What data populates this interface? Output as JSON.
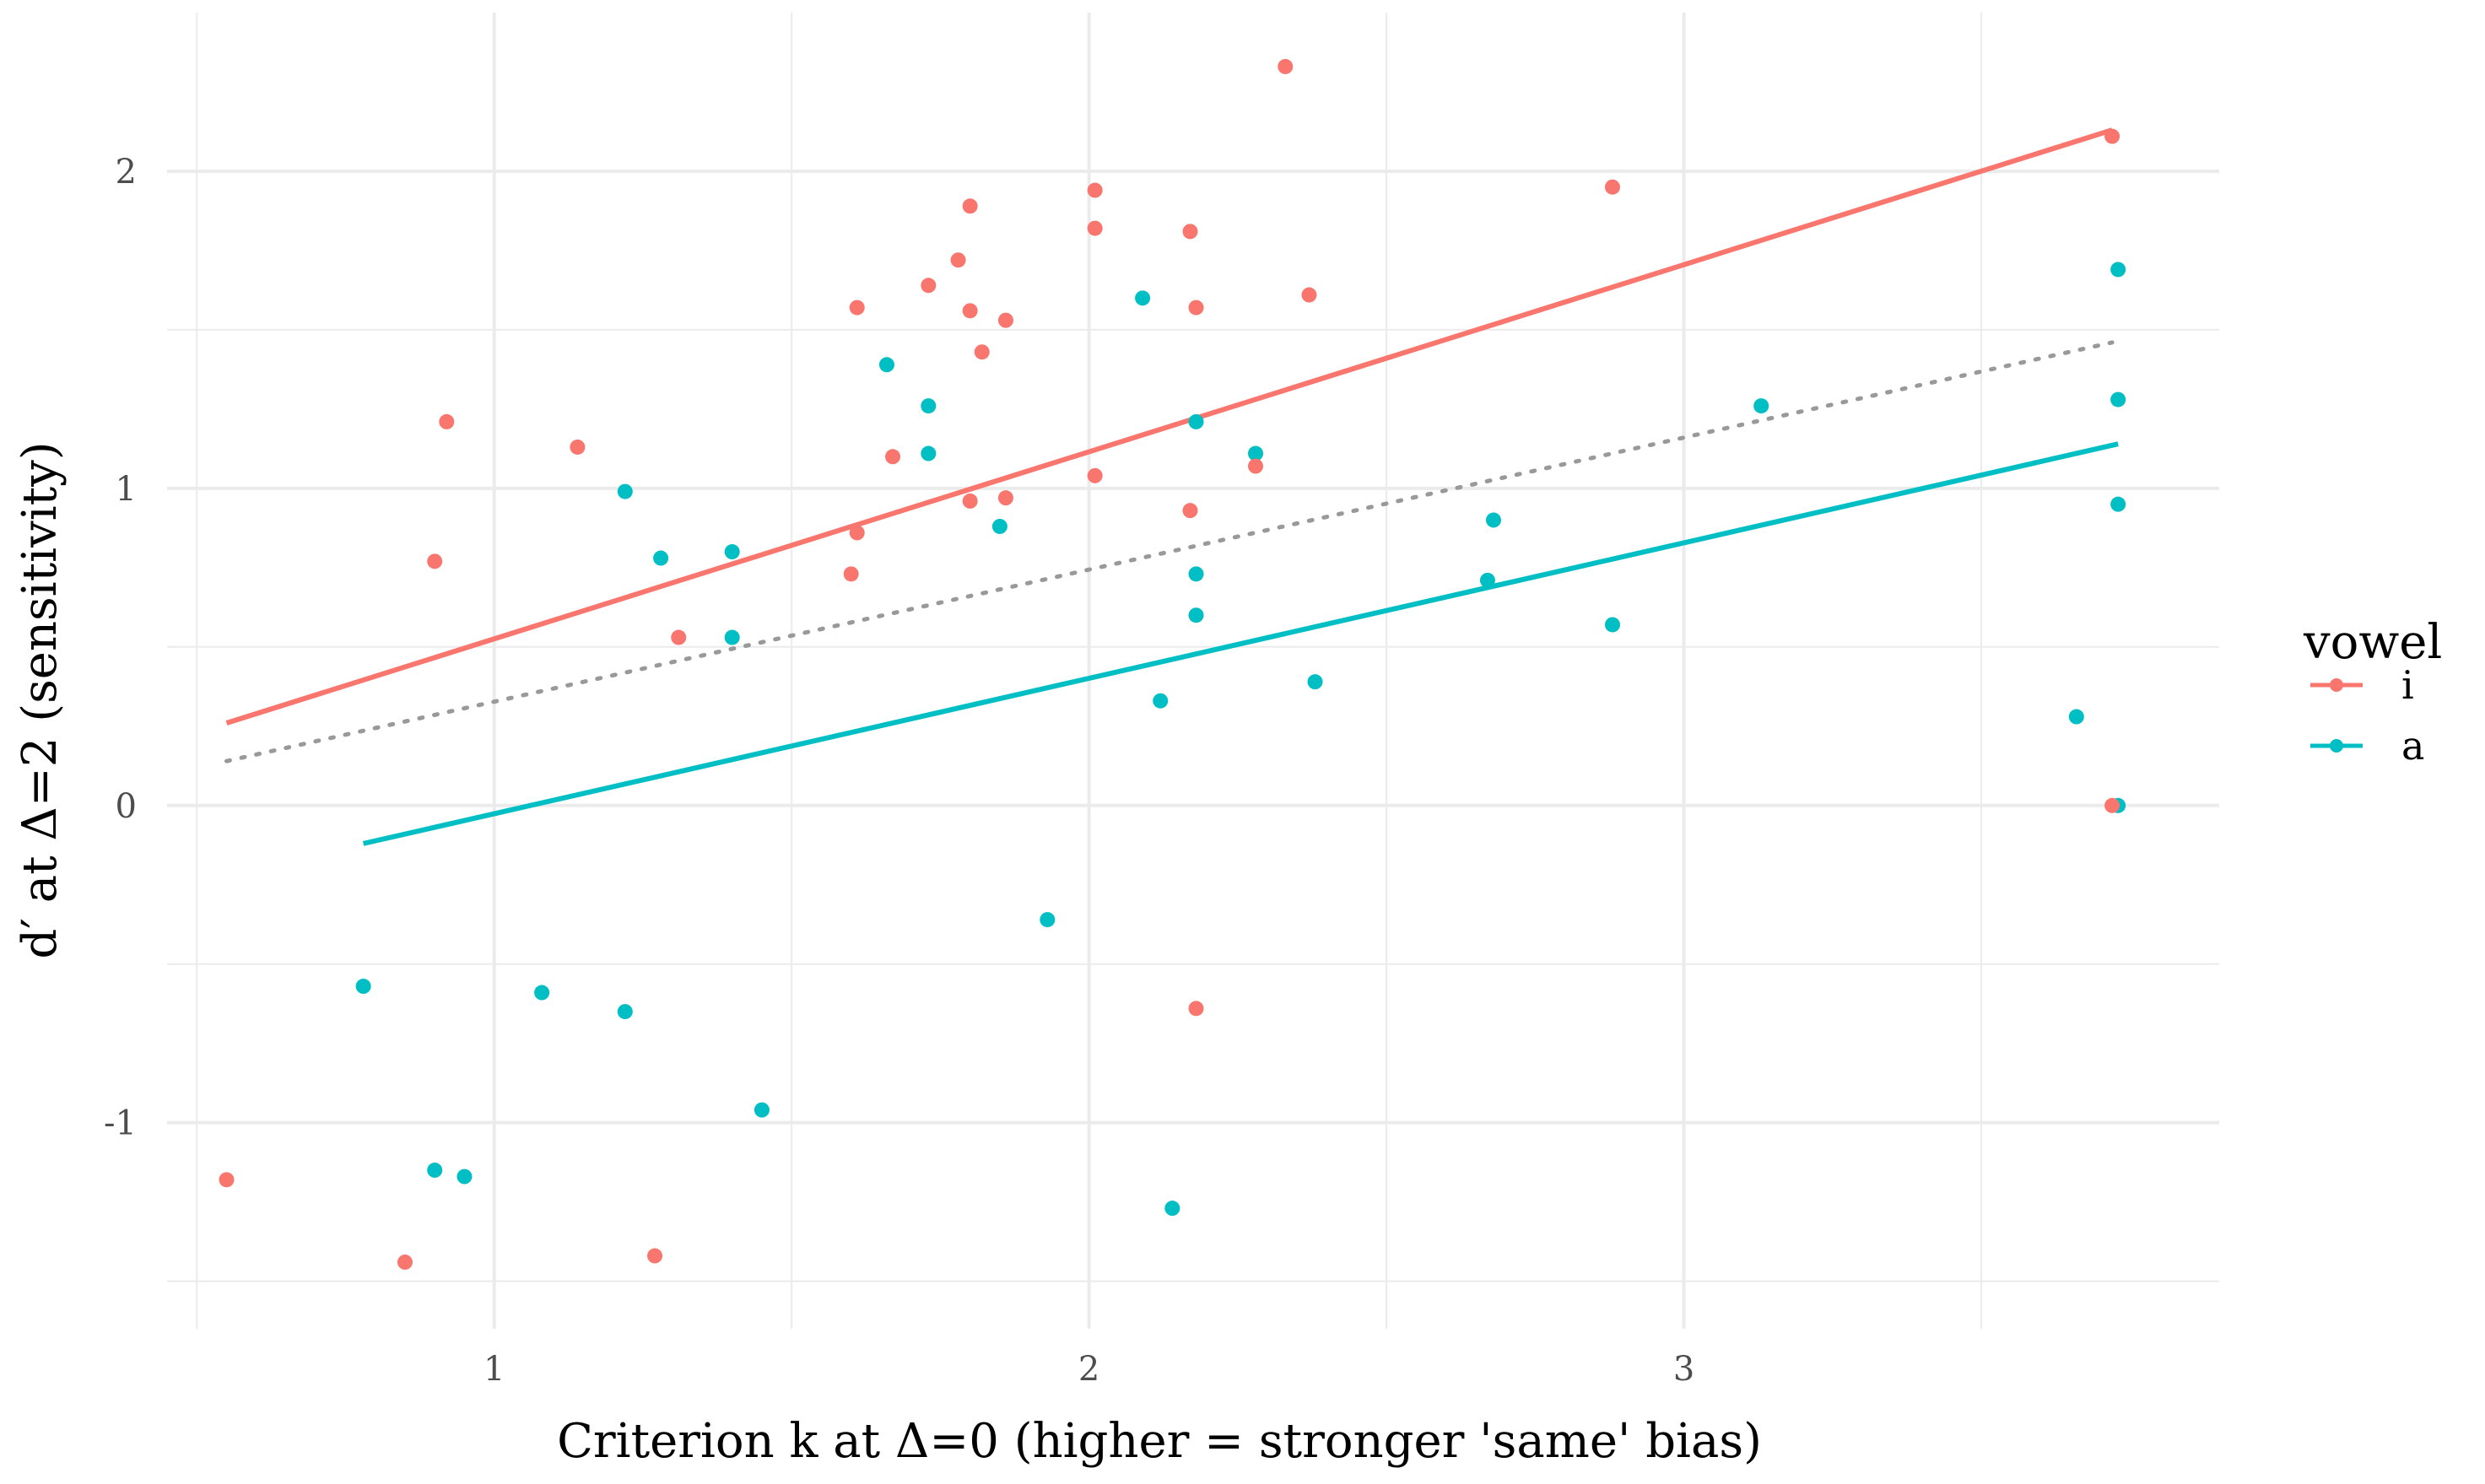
{
  "chart_data": {
    "type": "scatter",
    "xlabel": "Criterion k at Δ=0 (higher = stronger 'same' bias)",
    "ylabel": "d′ at Δ=2 (sensitivity)",
    "xlim": [
      0.45,
      3.9
    ],
    "ylim": [
      -1.65,
      2.5
    ],
    "x_ticks": [
      1,
      2,
      3
    ],
    "x_tick_labels": [
      "1",
      "2",
      "3"
    ],
    "y_ticks": [
      -1,
      0,
      1,
      2
    ],
    "y_tick_labels": [
      "-1",
      "0",
      "1",
      "2"
    ],
    "x_minor": [
      0.5,
      1.5,
      2.5,
      3.5
    ],
    "y_minor": [
      -1.5,
      -0.5,
      0.5,
      1.5
    ],
    "grid": true,
    "legend": {
      "title": "vowel",
      "position": "right",
      "entries": [
        "i",
        "a"
      ]
    },
    "colors": {
      "i": "#f8766d",
      "a": "#00bfc4",
      "overall": "#999999",
      "grid": "#ebebeb"
    },
    "series": [
      {
        "name": "i",
        "points": [
          [
            0.55,
            -1.18
          ],
          [
            0.85,
            -1.44
          ],
          [
            0.9,
            0.77
          ],
          [
            0.92,
            1.21
          ],
          [
            1.14,
            1.13
          ],
          [
            1.27,
            -1.42
          ],
          [
            1.31,
            0.53
          ],
          [
            1.6,
            0.73
          ],
          [
            1.61,
            0.86
          ],
          [
            1.61,
            1.57
          ],
          [
            1.67,
            1.1
          ],
          [
            1.73,
            1.64
          ],
          [
            1.78,
            1.72
          ],
          [
            1.8,
            1.89
          ],
          [
            1.8,
            1.56
          ],
          [
            1.8,
            0.96
          ],
          [
            1.82,
            1.43
          ],
          [
            1.86,
            1.53
          ],
          [
            1.86,
            0.97
          ],
          [
            2.01,
            1.94
          ],
          [
            2.01,
            1.82
          ],
          [
            2.01,
            1.04
          ],
          [
            2.17,
            1.81
          ],
          [
            2.17,
            0.93
          ],
          [
            2.18,
            1.57
          ],
          [
            2.18,
            -0.64
          ],
          [
            2.28,
            1.07
          ],
          [
            2.33,
            2.33
          ],
          [
            2.37,
            1.61
          ],
          [
            2.88,
            1.95
          ],
          [
            3.72,
            2.11
          ],
          [
            3.72,
            0.0
          ]
        ],
        "fit": {
          "x": [
            0.55,
            3.72
          ],
          "y": [
            0.26,
            2.13
          ]
        }
      },
      {
        "name": "a",
        "points": [
          [
            0.78,
            -0.57
          ],
          [
            0.9,
            -1.15
          ],
          [
            0.95,
            -1.17
          ],
          [
            1.08,
            -0.59
          ],
          [
            1.22,
            0.99
          ],
          [
            1.22,
            -0.65
          ],
          [
            1.28,
            0.78
          ],
          [
            1.4,
            0.8
          ],
          [
            1.4,
            0.53
          ],
          [
            1.45,
            -0.96
          ],
          [
            1.66,
            1.39
          ],
          [
            1.73,
            1.26
          ],
          [
            1.73,
            1.11
          ],
          [
            1.85,
            0.88
          ],
          [
            1.93,
            -0.36
          ],
          [
            2.09,
            1.6
          ],
          [
            2.12,
            0.33
          ],
          [
            2.14,
            -1.27
          ],
          [
            2.18,
            1.21
          ],
          [
            2.18,
            0.73
          ],
          [
            2.18,
            0.6
          ],
          [
            2.28,
            1.11
          ],
          [
            2.38,
            0.39
          ],
          [
            2.67,
            0.71
          ],
          [
            2.68,
            0.9
          ],
          [
            2.88,
            0.57
          ],
          [
            3.13,
            1.26
          ],
          [
            3.66,
            0.28
          ],
          [
            3.73,
            1.69
          ],
          [
            3.73,
            1.28
          ],
          [
            3.73,
            0.95
          ],
          [
            3.73,
            0.0
          ]
        ],
        "fit": {
          "x": [
            0.78,
            3.73
          ],
          "y": [
            -0.12,
            1.14
          ]
        }
      }
    ],
    "overall_fit": {
      "x": [
        0.55,
        3.72
      ],
      "y": [
        0.14,
        1.46
      ],
      "style": "dotted"
    }
  }
}
